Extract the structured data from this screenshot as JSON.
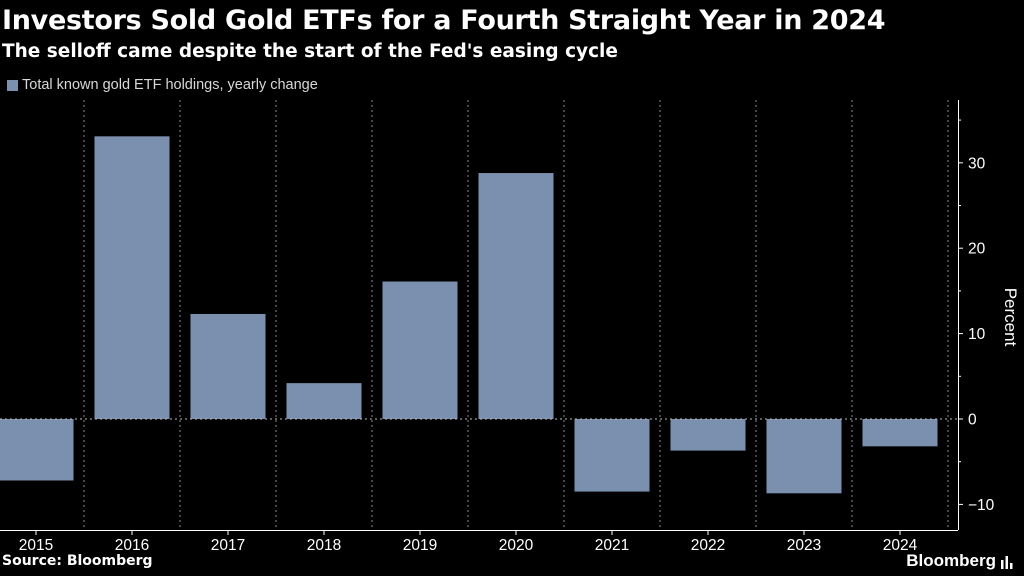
{
  "header": {
    "title": "Investors Sold Gold ETFs for a Fourth Straight Year in 2024",
    "subtitle": "The selloff came despite the start of the Fed's easing cycle"
  },
  "footer": {
    "source": "Source: Bloomberg",
    "brand": "Bloomberg"
  },
  "colors": {
    "background": "#000000",
    "bar": "#7b8fae",
    "grid": "#8a8a8a",
    "axis": "#ffffff"
  },
  "icons": {
    "brand_mark": "bloomberg-chart-mark-icon"
  },
  "chart_data": {
    "type": "bar",
    "title": "Investors Sold Gold ETFs for a Fourth Straight Year in 2024",
    "subtitle": "The selloff came despite the start of the Fed's easing cycle",
    "categories": [
      "2015",
      "2016",
      "2017",
      "2018",
      "2019",
      "2020",
      "2021",
      "2022",
      "2023",
      "2024"
    ],
    "series": [
      {
        "name": "Total known gold ETF holdings, yearly change",
        "values": [
          -7.2,
          33.1,
          12.3,
          4.2,
          16.1,
          28.8,
          -8.5,
          -3.7,
          -8.7,
          -3.2
        ]
      }
    ],
    "xlabel": "",
    "ylabel": "Percent",
    "ylim": [
      -11.5,
      37
    ],
    "yticks": [
      -10,
      0,
      10,
      20,
      30
    ],
    "ytick_labels": [
      "−10",
      "0",
      "10",
      "20",
      "30"
    ],
    "y_axis_side": "right",
    "grid": "vertical dotted",
    "legend_position": "top-left",
    "source": "Source: Bloomberg"
  }
}
